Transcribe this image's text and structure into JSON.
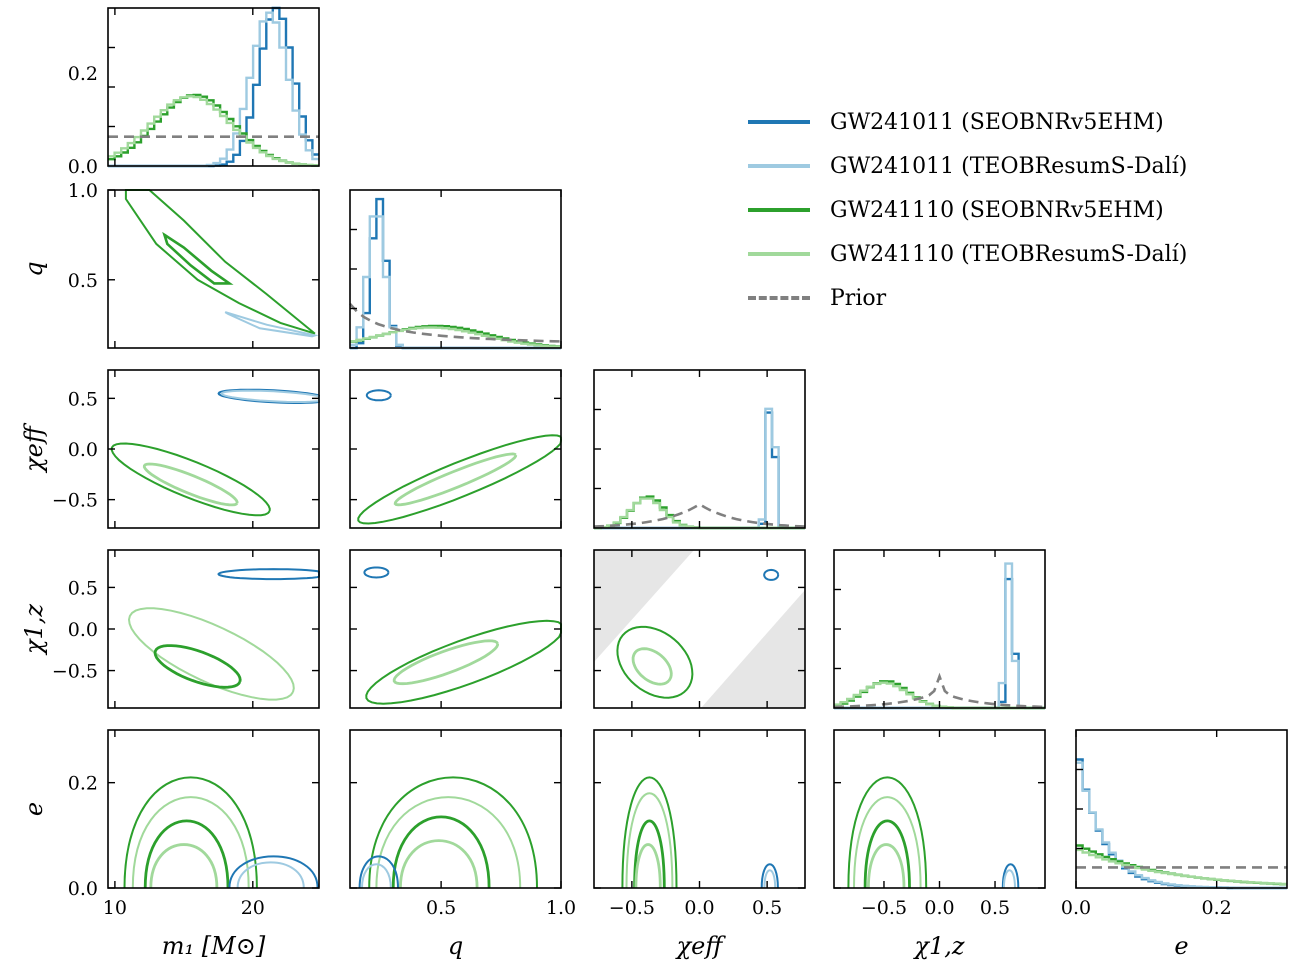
{
  "colors": {
    "gw1_seob": "#1f77b4",
    "gw1_teob": "#9ecae1",
    "gw2_seob": "#2ca02c",
    "gw2_teob": "#a1d99b",
    "prior": "#808080",
    "forbidden": "#e6e6e6"
  },
  "legend": [
    {
      "label": "GW241011 (SEOBNRv5EHM)",
      "color": "#1f77b4",
      "dash": false
    },
    {
      "label": "GW241011 (TEOBResumS-Dalí)",
      "color": "#9ecae1",
      "dash": false
    },
    {
      "label": "GW241110 (SEOBNRv5EHM)",
      "color": "#2ca02c",
      "dash": false
    },
    {
      "label": "GW241110 (TEOBResumS-Dalí)",
      "color": "#a1d99b",
      "dash": false
    },
    {
      "label": "Prior",
      "color": "#808080",
      "dash": true
    }
  ],
  "axis_labels": {
    "m1": "m₁ [M⊙]",
    "q": "q",
    "chi_eff": "χeff",
    "chi_1z": "χ1,z",
    "e": "e"
  },
  "chart_data": {
    "type": "corner",
    "parameters": [
      "m1",
      "q",
      "chi_eff",
      "chi_1z",
      "e"
    ],
    "ranges": {
      "m1": [
        9.5,
        24.8
      ],
      "q": [
        0.12,
        1.0
      ],
      "chi_eff": [
        -0.78,
        0.78
      ],
      "chi_1z": [
        -0.95,
        0.95
      ],
      "e": [
        0.0,
        0.3
      ]
    },
    "ticks": {
      "m1": [
        10,
        20
      ],
      "q": [
        0.5,
        1.0
      ],
      "chi_eff": [
        -0.5,
        0.0,
        0.5
      ],
      "chi_1z": [
        -0.5,
        0.0,
        0.5
      ],
      "e": [
        0.0,
        0.2
      ]
    },
    "tick_labels": {
      "m1": [
        "10",
        "20"
      ],
      "q_row": [
        "0.5",
        "1.0"
      ],
      "q_col": [
        "0.5",
        "1.0"
      ],
      "chi_eff": [
        "−0.5",
        "0.0",
        "0.5"
      ],
      "chi_1z": [
        "−0.5",
        "0.0",
        "0.5"
      ],
      "e_row": [
        "0.0",
        "0.2"
      ],
      "e_col": [
        "0.0",
        "0.2"
      ],
      "m1_hist": [
        "0.0",
        "0.2"
      ]
    },
    "histograms": {
      "m1": {
        "ylim": [
          0,
          0.34
        ],
        "prior": 0.063,
        "series": [
          {
            "name": "GW241011 (SEOBNRv5EHM)",
            "mean": 21.7,
            "sd": 1.25,
            "peak": 0.34
          },
          {
            "name": "GW241011 (TEOBResumS-Dalí)",
            "mean": 21.2,
            "sd": 1.35,
            "peak": 0.33
          },
          {
            "name": "GW241110 (SEOBNRv5EHM)",
            "mean": 15.8,
            "sd": 2.8,
            "peak": 0.153
          },
          {
            "name": "GW241110 (TEOBResumS-Dalí)",
            "mean": 15.5,
            "sd": 2.9,
            "peak": 0.15
          }
        ]
      },
      "q": {
        "ylim": [
          0,
          1
        ],
        "series": [
          {
            "name": "GW241011 (SEOBNRv5EHM)",
            "mean": 0.24,
            "sd": 0.03,
            "peak": 0.95
          },
          {
            "name": "GW241011 (TEOBResumS-Dalí)",
            "mean": 0.23,
            "sd": 0.035,
            "peak": 0.9
          },
          {
            "name": "GW241110 (SEOBNRv5EHM)",
            "mean": 0.48,
            "sd": 0.22,
            "peak": 0.14
          },
          {
            "name": "GW241110 (TEOBResumS-Dalí)",
            "mean": 0.46,
            "sd": 0.22,
            "peak": 0.13
          }
        ]
      },
      "chi_eff": {
        "ylim": [
          0,
          1
        ],
        "series": [
          {
            "name": "GW241011 (SEOBNRv5EHM)",
            "mean": 0.53,
            "sd": 0.025,
            "peak": 0.95
          },
          {
            "name": "GW241011 (TEOBResumS-Dalí)",
            "mean": 0.53,
            "sd": 0.028,
            "peak": 0.93
          },
          {
            "name": "GW241110 (SEOBNRv5EHM)",
            "mean": -0.38,
            "sd": 0.12,
            "peak": 0.2
          },
          {
            "name": "GW241110 (TEOBResumS-Dalí)",
            "mean": -0.39,
            "sd": 0.12,
            "peak": 0.19
          }
        ]
      },
      "chi_1z": {
        "ylim": [
          0,
          1
        ],
        "series": [
          {
            "name": "GW241011 (SEOBNRv5EHM)",
            "mean": 0.64,
            "sd": 0.03,
            "peak": 0.95
          },
          {
            "name": "GW241011 (TEOBResumS-Dalí)",
            "mean": 0.63,
            "sd": 0.035,
            "peak": 0.93
          },
          {
            "name": "GW241110 (SEOBNRv5EHM)",
            "mean": -0.48,
            "sd": 0.2,
            "peak": 0.17
          },
          {
            "name": "GW241110 (TEOBResumS-Dalí)",
            "mean": -0.5,
            "sd": 0.21,
            "peak": 0.16
          }
        ]
      },
      "e": {
        "ylim": [
          0,
          1
        ],
        "series": [
          {
            "name": "GW241011 (SEOBNRv5EHM)",
            "start": 0.93,
            "decay": 0.035,
            "peak": 0.93
          },
          {
            "name": "GW241011 (TEOBResumS-Dalí)",
            "start": 0.9,
            "decay": 0.037,
            "peak": 0.9
          },
          {
            "name": "GW241110 (SEOBNRv5EHM)",
            "start": 0.28,
            "decay": 0.12,
            "peak": 0.28
          },
          {
            "name": "GW241110 (TEOBResumS-Dalí)",
            "start": 0.25,
            "decay": 0.13,
            "peak": 0.25
          }
        ]
      }
    },
    "bands_2d": {
      "q_m1": [
        {
          "series": "GW241110",
          "points": [
            [
              10.8,
              1.0
            ],
            [
              12.5,
              1.0
            ],
            [
              15,
              0.83
            ],
            [
              18,
              0.6
            ],
            [
              21,
              0.42
            ],
            [
              24.5,
              0.2
            ],
            [
              22,
              0.26
            ],
            [
              19,
              0.37
            ],
            [
              16,
              0.5
            ],
            [
              13,
              0.7
            ],
            [
              10.8,
              0.95
            ]
          ]
        },
        {
          "series": "GW241110-50",
          "points": [
            [
              13.6,
              0.75
            ],
            [
              15,
              0.68
            ],
            [
              17,
              0.55
            ],
            [
              18.3,
              0.48
            ],
            [
              17.2,
              0.48
            ],
            [
              15.5,
              0.58
            ],
            [
              13.8,
              0.7
            ]
          ]
        },
        {
          "series": "GW241011",
          "points": [
            [
              18,
              0.32
            ],
            [
              21,
              0.25
            ],
            [
              24.5,
              0.19
            ],
            [
              24.3,
              0.185
            ],
            [
              20.5,
              0.23
            ],
            [
              18.2,
              0.31
            ]
          ]
        }
      ]
    }
  }
}
